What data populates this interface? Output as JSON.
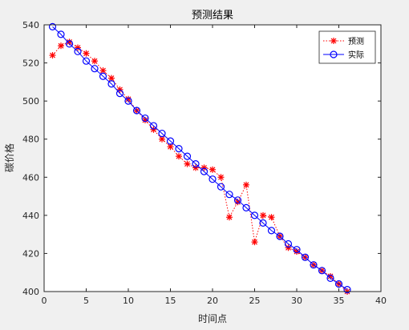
{
  "chart_data": {
    "type": "line",
    "title": "预测结果",
    "xlabel": "时间点",
    "ylabel": "碳价格",
    "xlim": [
      0,
      40
    ],
    "ylim": [
      400,
      540
    ],
    "xticks": [
      0,
      5,
      10,
      15,
      20,
      25,
      30,
      35,
      40
    ],
    "yticks": [
      400,
      420,
      440,
      460,
      480,
      500,
      520,
      540
    ],
    "legend_position": "top-right",
    "grid": false,
    "x": [
      1,
      2,
      3,
      4,
      5,
      6,
      7,
      8,
      9,
      10,
      11,
      12,
      13,
      14,
      15,
      16,
      17,
      18,
      19,
      20,
      21,
      22,
      23,
      24,
      25,
      26,
      27,
      28,
      29,
      30,
      31,
      32,
      33,
      34,
      35,
      36
    ],
    "series": [
      {
        "name": "预测",
        "color": "#ff0000",
        "marker": "asterisk",
        "line": "dotted",
        "values": [
          524,
          529,
          531,
          528,
          525,
          521,
          516,
          512,
          506,
          501,
          495,
          490,
          485,
          480,
          476,
          471,
          467,
          465,
          465,
          464,
          460,
          439,
          447,
          456,
          426,
          440,
          439,
          429,
          423,
          421,
          418,
          414,
          411,
          408,
          404,
          400
        ]
      },
      {
        "name": "实际",
        "color": "#0000ff",
        "marker": "circle",
        "line": "solid",
        "values": [
          539,
          535,
          530,
          526,
          521,
          517,
          513,
          509,
          504,
          500,
          495,
          491,
          487,
          483,
          479,
          475,
          471,
          467,
          463,
          459,
          455,
          451,
          448,
          444,
          440,
          436,
          432,
          429,
          425,
          422,
          418,
          414,
          411,
          407,
          404,
          401
        ]
      }
    ]
  }
}
